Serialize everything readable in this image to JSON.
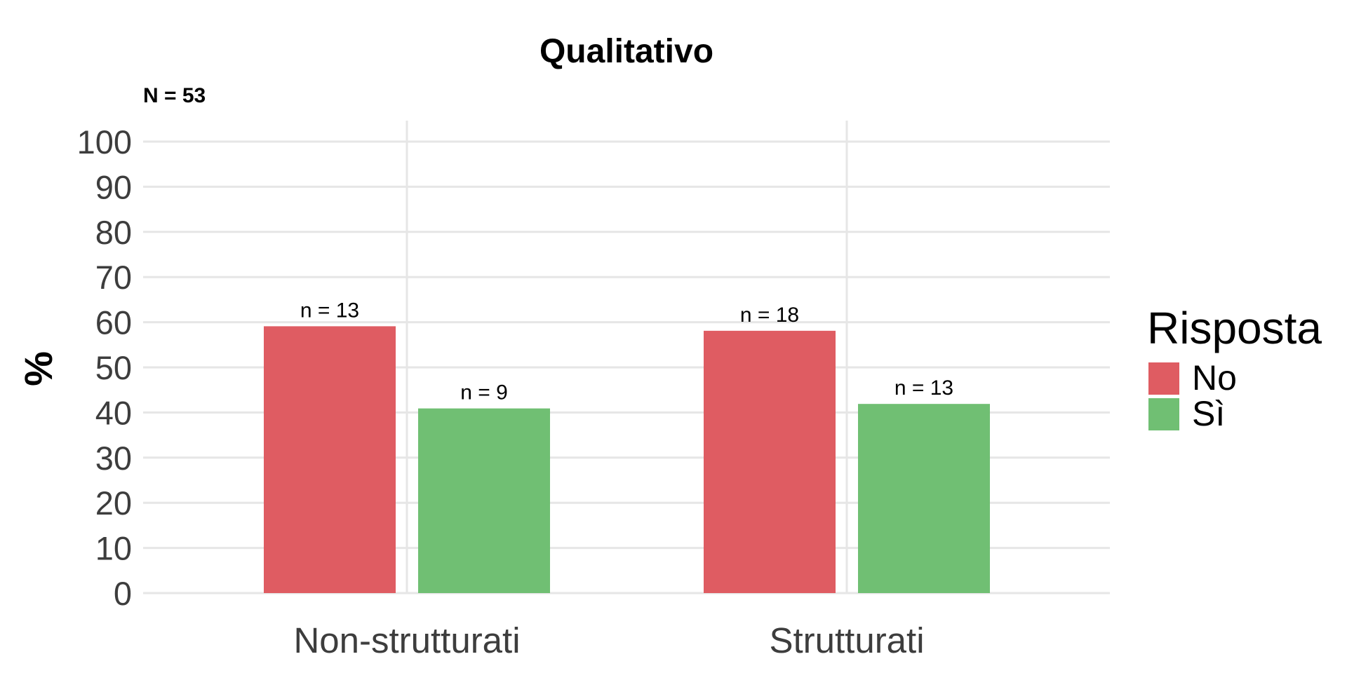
{
  "chart_data": {
    "type": "bar",
    "title": "Qualitativo",
    "subtitle": "N = 53",
    "xlabel": "",
    "ylabel": "%",
    "ylim": [
      0,
      100
    ],
    "yticks": [
      "0",
      "10",
      "20",
      "30",
      "40",
      "50",
      "60",
      "70",
      "80",
      "90",
      "100"
    ],
    "categories": [
      "Non-strutturati",
      "Strutturati"
    ],
    "legend_title": "Risposta",
    "legend_position": "right",
    "grid": true,
    "series": [
      {
        "name": "No",
        "color": "#DF5C62",
        "values": [
          59.1,
          58.1
        ],
        "labels": [
          "n = 13",
          "n = 18"
        ]
      },
      {
        "name": "Sì",
        "color": "#70BF73",
        "values": [
          40.9,
          41.9
        ],
        "labels": [
          "n = 9",
          "n = 13"
        ]
      }
    ]
  }
}
